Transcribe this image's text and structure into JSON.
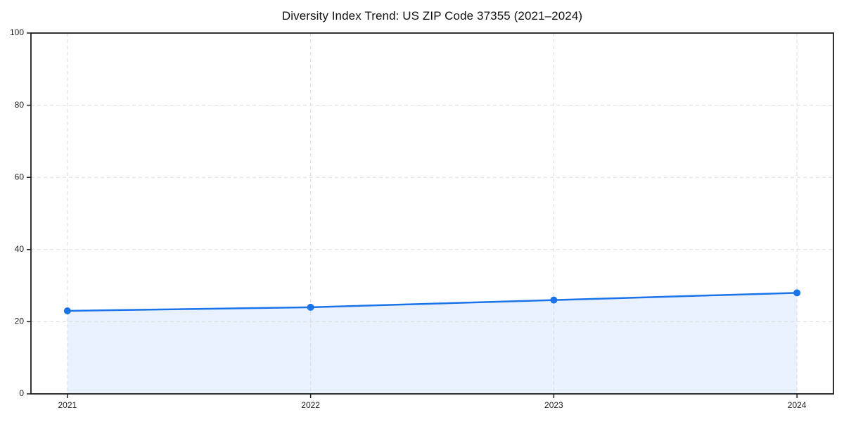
{
  "figure": {
    "background": "#ffffff"
  },
  "chart_data": {
    "type": "line",
    "title": "Diversity Index Trend: US ZIP Code 37355 (2021–2024)",
    "xlabel": "",
    "ylabel": "",
    "x": [
      2021,
      2022,
      2023,
      2024
    ],
    "series": [
      {
        "name": "Diversity Index",
        "values": [
          23,
          24,
          26,
          28
        ]
      }
    ],
    "xticks": [
      2021,
      2022,
      2023,
      2024
    ],
    "xtick_labels": [
      "2021",
      "2022",
      "2023",
      "2024"
    ],
    "yticks": [
      0,
      20,
      40,
      60,
      80,
      100
    ],
    "ytick_labels": [
      "0",
      "20",
      "40",
      "60",
      "80",
      "100"
    ],
    "xlim": [
      2020.85,
      2024.15
    ],
    "ylim": [
      0,
      100
    ],
    "grid": true,
    "grid_style": "dashed",
    "area_fill": true,
    "markers": true,
    "legend_position": "none",
    "colors": {
      "line": "#1a73e8",
      "marker": "#1a73e8",
      "area": "rgba(26, 115, 232, 0.10)",
      "grid": "#dcdcdc",
      "spine": "#1c1c1c",
      "tick": "#1c1c1c",
      "tick_label": "#1c1c1c",
      "title": "#111111"
    }
  }
}
